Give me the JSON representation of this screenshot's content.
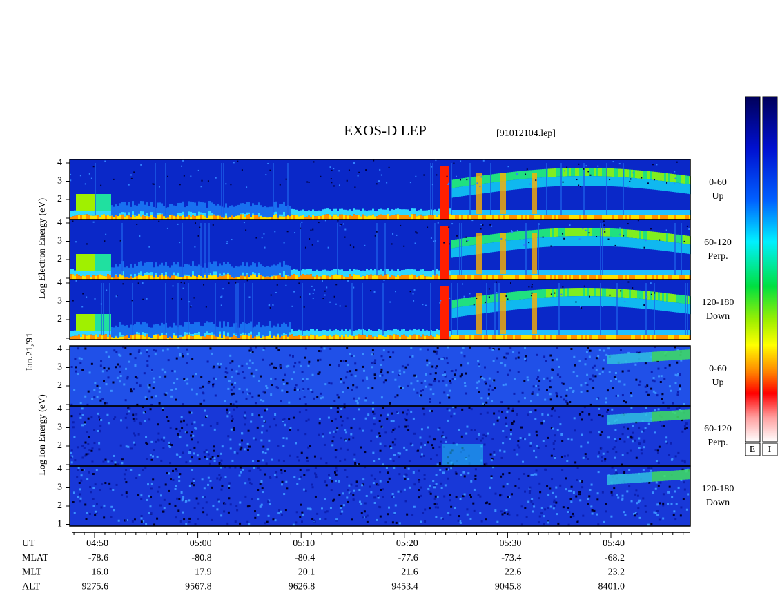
{
  "header": {
    "title": "EXOS-D LEP",
    "file": "[91012104.lep]"
  },
  "date": "Jan.21,'91",
  "electron": {
    "axis_label": "Log  Electron  Energy (eV)",
    "panels": [
      {
        "ticks": [
          "4",
          "3",
          "2"
        ],
        "pitch": "0-60",
        "direction": "Up"
      },
      {
        "ticks": [
          "4",
          "3",
          "2"
        ],
        "pitch": "60-120",
        "direction": "Perp."
      },
      {
        "ticks": [
          "4",
          "3",
          "2"
        ],
        "pitch": "120-180",
        "direction": "Down"
      }
    ]
  },
  "ion": {
    "axis_label": "Log  Ion  Energy (eV)",
    "panels": [
      {
        "ticks": [
          "4",
          "3",
          "2"
        ],
        "pitch": "0-60",
        "direction": "Up"
      },
      {
        "ticks": [
          "4",
          "3",
          "2"
        ],
        "pitch": "60-120",
        "direction": "Perp."
      },
      {
        "ticks": [
          "4",
          "3",
          "2",
          "1"
        ],
        "pitch": "120-180",
        "direction": "Down"
      }
    ]
  },
  "ephemeris": {
    "labels": [
      "UT",
      "MLAT",
      "MLT",
      "ALT"
    ],
    "columns": [
      [
        "04:50",
        "-78.6",
        "16.0",
        "9275.6"
      ],
      [
        "05:00",
        "-80.8",
        "17.9",
        "9567.8"
      ],
      [
        "05:10",
        "-80.4",
        "20.1",
        "9626.8"
      ],
      [
        "05:20",
        "-77.6",
        "21.6",
        "9453.4"
      ],
      [
        "05:30",
        "-73.4",
        "22.6",
        "9045.8"
      ],
      [
        "05:40",
        "-68.2",
        "23.2",
        "8401.0"
      ]
    ]
  },
  "colorbars": [
    "E",
    "I"
  ]
}
